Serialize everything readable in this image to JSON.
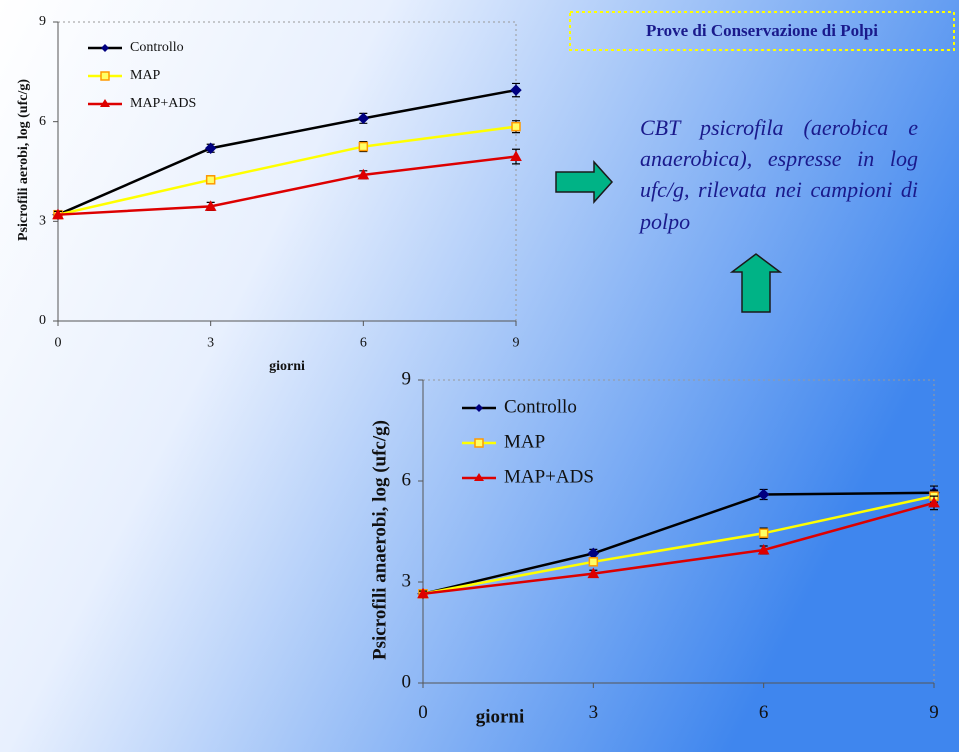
{
  "slide": {
    "title": "Prove di Conservazione di Polpi",
    "description": "CBT psicrofila (aerobica e anaerobica), espresse in log ufc/g, rilevata nei campioni di polpo"
  },
  "chart_data": [
    {
      "type": "line",
      "x_label": "giorni",
      "y_label": "Psicrofili aerobi, log (ufc/g)",
      "x": [
        0,
        3,
        6,
        9
      ],
      "xlim": [
        0,
        9
      ],
      "xticks": [
        0,
        3,
        6,
        9
      ],
      "ylim": [
        0,
        9
      ],
      "yticks": [
        0,
        3,
        6,
        9
      ],
      "series": [
        {
          "name": "Controllo",
          "color": "#000000",
          "marker_color": "#000080",
          "marker": "diamond",
          "values": [
            3.2,
            5.2,
            6.1,
            6.95
          ],
          "errors": [
            0.1,
            0.12,
            0.15,
            0.2
          ]
        },
        {
          "name": "MAP",
          "color": "#ffff00",
          "marker_color": "#ff9900",
          "marker": "square",
          "values": [
            3.2,
            4.25,
            5.25,
            5.85
          ],
          "errors": [
            0.1,
            0.12,
            0.15,
            0.18
          ]
        },
        {
          "name": "MAP+ADS",
          "color": "#dd0000",
          "marker_color": "#dd0000",
          "marker": "triangle",
          "values": [
            3.2,
            3.45,
            4.4,
            4.95
          ],
          "errors": [
            0.1,
            0.12,
            0.12,
            0.22
          ]
        }
      ]
    },
    {
      "type": "line",
      "x_label": "giorni",
      "y_label": "Psicrofili anaerobi, log (ufc/g)",
      "x": [
        0,
        3,
        6,
        9
      ],
      "xlim": [
        0,
        9
      ],
      "xticks": [
        0,
        3,
        6,
        9
      ],
      "ylim": [
        0,
        9
      ],
      "yticks": [
        0,
        3,
        6,
        9
      ],
      "series": [
        {
          "name": "Controllo",
          "color": "#000000",
          "marker_color": "#000080",
          "marker": "diamond",
          "values": [
            2.65,
            3.85,
            5.6,
            5.65
          ],
          "errors": [
            0.08,
            0.12,
            0.15,
            0.2
          ]
        },
        {
          "name": "MAP",
          "color": "#ffff00",
          "marker_color": "#ff9900",
          "marker": "square",
          "values": [
            2.65,
            3.6,
            4.45,
            5.55
          ],
          "errors": [
            0.08,
            0.12,
            0.15,
            0.18
          ]
        },
        {
          "name": "MAP+ADS",
          "color": "#dd0000",
          "marker_color": "#dd0000",
          "marker": "triangle",
          "values": [
            2.65,
            3.25,
            3.95,
            5.35
          ],
          "errors": [
            0.08,
            0.1,
            0.12,
            0.2
          ]
        }
      ]
    }
  ]
}
